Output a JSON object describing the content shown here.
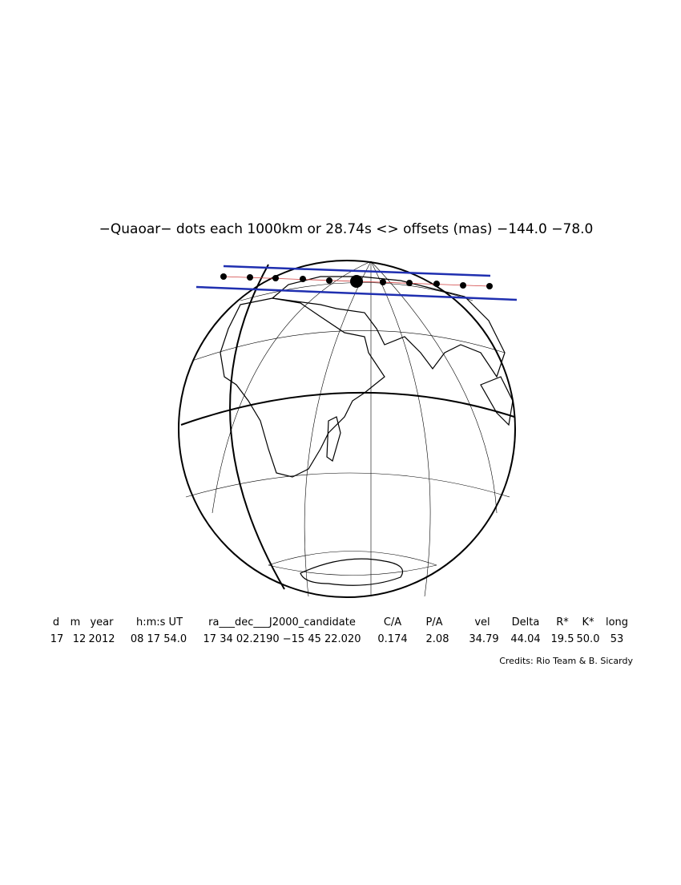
{
  "title": "−Quaoar− dots each 1000km or 28.74s <> offsets (mas) −144.0  −78.0",
  "table": {
    "header": [
      "d",
      "m",
      "year",
      "h:m:s UT",
      "ra___dec___J2000_candidate",
      "C/A",
      "P/A",
      "vel",
      "Delta",
      "R*",
      "K*",
      "long"
    ],
    "row": [
      "17",
      "12",
      "2012",
      "08 17 54.0",
      "17 34 02.2190 −15 45 22.020",
      "0.174",
      "2.08",
      "34.79",
      "44.04",
      "19.5",
      "50.0",
      "53"
    ]
  },
  "credits": "Credits: Rio Team & B. Sicardy"
}
